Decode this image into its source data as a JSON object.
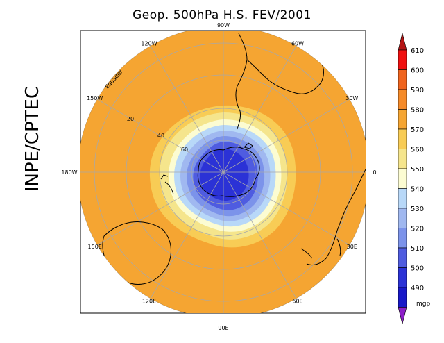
{
  "title": "Geop. 500hPa H.S. FEV/2001",
  "side_label": "INPE/CPTEC",
  "unit": "mgp",
  "map": {
    "longitude_labels": [
      {
        "text": "90W",
        "deg": 90
      },
      {
        "text": "60W",
        "deg": 60
      },
      {
        "text": "30W",
        "deg": 30
      },
      {
        "text": "0",
        "deg": 0
      },
      {
        "text": "30E",
        "deg": -30
      },
      {
        "text": "60E",
        "deg": -60
      },
      {
        "text": "90E",
        "deg": -90
      },
      {
        "text": "120E",
        "deg": -120
      },
      {
        "text": "150E",
        "deg": -150
      },
      {
        "text": "180W",
        "deg": 180
      },
      {
        "text": "150W",
        "deg": 150
      },
      {
        "text": "120W",
        "deg": 120
      }
    ],
    "latitude_labels": [
      "20",
      "40",
      "60"
    ],
    "equator_label": "Equador"
  },
  "colorbar": {
    "levels": [
      "610",
      "600",
      "590",
      "580",
      "570",
      "560",
      "550",
      "540",
      "530",
      "520",
      "510",
      "500",
      "490"
    ],
    "colors": [
      "#f01010",
      "#f0641e",
      "#f58a28",
      "#f5a532",
      "#f8cc55",
      "#f5e58c",
      "#fcfcd2",
      "#b8d8f8",
      "#a0b8f0",
      "#7c93ea",
      "#4f5ce0",
      "#2b32d6",
      "#1818c8"
    ],
    "top_arrow_color": "#b41414",
    "bottom_arrow_color": "#8c1ec8"
  }
}
